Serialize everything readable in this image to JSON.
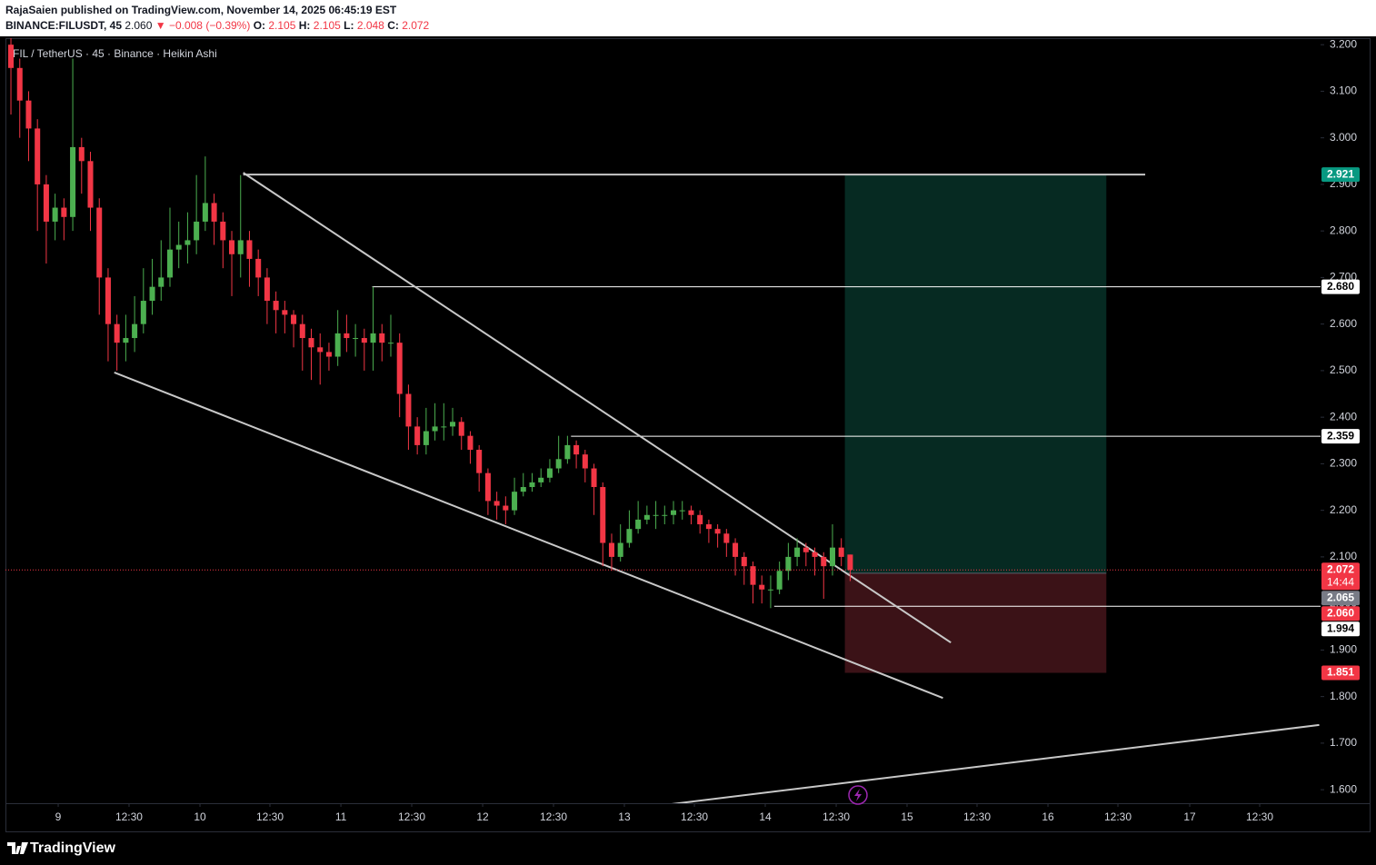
{
  "header": {
    "line1": "RajaSaien published on TradingView.com, November 14, 2025 06:45:19 EST",
    "symbol": "BINANCE:FILUSDT, 45",
    "last": "2.060",
    "change": "▼ −0.008 (−0.39%)",
    "ohlc": [
      [
        "O:",
        "2.105"
      ],
      [
        "H:",
        "2.105"
      ],
      [
        "L:",
        "2.048"
      ],
      [
        "C:",
        "2.072"
      ]
    ]
  },
  "chart_data": {
    "type": "candlestick",
    "legend": "FIL / TetherUS · 45 · Binance · Heikin Ashi",
    "up_color": "#4caf50",
    "down_color": "#f23645",
    "open": [
      3.2,
      3.15,
      3.08,
      3.02,
      2.9,
      2.82,
      2.85,
      2.83,
      2.98,
      2.95,
      2.85,
      2.7,
      2.6,
      2.56,
      2.57,
      2.6,
      2.65,
      2.68,
      2.7,
      2.76,
      2.77,
      2.78,
      2.82,
      2.86,
      2.82,
      2.78,
      2.75,
      2.78,
      2.74,
      2.7,
      2.65,
      2.63,
      2.62,
      2.6,
      2.57,
      2.55,
      2.54,
      2.53,
      2.58,
      2.57,
      2.57,
      2.56,
      2.58,
      2.56,
      2.56,
      2.45,
      2.38,
      2.34,
      2.37,
      2.38,
      2.38,
      2.39,
      2.36,
      2.33,
      2.28,
      2.22,
      2.21,
      2.2,
      2.24,
      2.25,
      2.26,
      2.27,
      2.29,
      2.31,
      2.34,
      2.32,
      2.29,
      2.25,
      2.13,
      2.1,
      2.13,
      2.16,
      2.18,
      2.19,
      2.19,
      2.19,
      2.2,
      2.2,
      2.19,
      2.17,
      2.16,
      2.15,
      2.13,
      2.1,
      2.08,
      2.04,
      2.03,
      2.03,
      2.07,
      2.1,
      2.12,
      2.11,
      2.1,
      2.08,
      2.12,
      2.105
    ],
    "high": [
      3.22,
      3.17,
      3.1,
      3.04,
      2.92,
      2.88,
      2.87,
      3.17,
      3.0,
      2.97,
      2.87,
      2.72,
      2.62,
      2.62,
      2.66,
      2.72,
      2.74,
      2.78,
      2.85,
      2.82,
      2.84,
      2.92,
      2.96,
      2.88,
      2.84,
      2.8,
      2.92,
      2.8,
      2.76,
      2.72,
      2.67,
      2.65,
      2.63,
      2.62,
      2.59,
      2.58,
      2.56,
      2.63,
      2.62,
      2.6,
      2.59,
      2.68,
      2.6,
      2.62,
      2.58,
      2.47,
      2.4,
      2.42,
      2.43,
      2.43,
      2.42,
      2.4,
      2.37,
      2.34,
      2.29,
      2.24,
      2.23,
      2.27,
      2.28,
      2.28,
      2.29,
      2.31,
      2.36,
      2.36,
      2.35,
      2.33,
      2.3,
      2.26,
      2.15,
      2.17,
      2.2,
      2.22,
      2.21,
      2.22,
      2.21,
      2.22,
      2.22,
      2.21,
      2.2,
      2.18,
      2.17,
      2.16,
      2.14,
      2.11,
      2.09,
      2.06,
      2.06,
      2.09,
      2.13,
      2.14,
      2.13,
      2.12,
      2.11,
      2.17,
      2.14,
      2.105
    ],
    "low": [
      3.05,
      3.0,
      2.95,
      2.8,
      2.73,
      2.78,
      2.78,
      2.8,
      2.88,
      2.8,
      2.62,
      2.52,
      2.5,
      2.52,
      2.54,
      2.58,
      2.62,
      2.65,
      2.68,
      2.72,
      2.73,
      2.75,
      2.8,
      2.77,
      2.72,
      2.66,
      2.7,
      2.68,
      2.66,
      2.6,
      2.58,
      2.58,
      2.55,
      2.5,
      2.48,
      2.47,
      2.5,
      2.51,
      2.54,
      2.53,
      2.5,
      2.5,
      2.52,
      2.53,
      2.4,
      2.33,
      2.32,
      2.32,
      2.35,
      2.35,
      2.36,
      2.33,
      2.3,
      2.24,
      2.19,
      2.18,
      2.17,
      2.19,
      2.23,
      2.24,
      2.25,
      2.26,
      2.28,
      2.3,
      2.29,
      2.26,
      2.19,
      2.08,
      2.07,
      2.09,
      2.12,
      2.15,
      2.17,
      2.16,
      2.17,
      2.17,
      2.18,
      2.17,
      2.15,
      2.13,
      2.12,
      2.1,
      2.06,
      2.04,
      2.0,
      2.0,
      1.99,
      2.02,
      2.05,
      2.08,
      2.08,
      2.06,
      2.01,
      2.06,
      2.08,
      2.048
    ],
    "close": [
      3.15,
      3.08,
      3.02,
      2.9,
      2.82,
      2.85,
      2.83,
      2.98,
      2.95,
      2.85,
      2.7,
      2.6,
      2.56,
      2.57,
      2.6,
      2.65,
      2.68,
      2.7,
      2.76,
      2.77,
      2.78,
      2.82,
      2.86,
      2.82,
      2.78,
      2.75,
      2.78,
      2.74,
      2.7,
      2.65,
      2.63,
      2.62,
      2.6,
      2.57,
      2.55,
      2.54,
      2.53,
      2.58,
      2.57,
      2.57,
      2.56,
      2.58,
      2.56,
      2.56,
      2.45,
      2.38,
      2.34,
      2.37,
      2.38,
      2.38,
      2.39,
      2.36,
      2.33,
      2.28,
      2.22,
      2.21,
      2.2,
      2.24,
      2.25,
      2.26,
      2.27,
      2.29,
      2.31,
      2.34,
      2.32,
      2.29,
      2.25,
      2.13,
      2.1,
      2.13,
      2.16,
      2.18,
      2.19,
      2.19,
      2.19,
      2.2,
      2.2,
      2.19,
      2.17,
      2.16,
      2.15,
      2.13,
      2.1,
      2.08,
      2.04,
      2.03,
      2.03,
      2.07,
      2.1,
      2.12,
      2.11,
      2.1,
      2.08,
      2.12,
      2.1,
      2.072
    ],
    "xlim": [
      -0.62,
      148.25
    ],
    "xticks": [
      {
        "value": 5.35,
        "label": "9"
      },
      {
        "value": 13.37,
        "label": "12:30"
      },
      {
        "value": 21.4,
        "label": "10"
      },
      {
        "value": 29.32,
        "label": "12:30"
      },
      {
        "value": 37.35,
        "label": "11"
      },
      {
        "value": 45.37,
        "label": "12:30"
      },
      {
        "value": 53.4,
        "label": "12"
      },
      {
        "value": 61.42,
        "label": "12:30"
      },
      {
        "value": 69.44,
        "label": "13"
      },
      {
        "value": 77.37,
        "label": "12:30"
      },
      {
        "value": 85.39,
        "label": "14"
      },
      {
        "value": 93.42,
        "label": "12:30"
      },
      {
        "value": 101.44,
        "label": "15"
      },
      {
        "value": 109.36,
        "label": "12:30"
      },
      {
        "value": 117.39,
        "label": "16"
      },
      {
        "value": 125.31,
        "label": "12:30"
      },
      {
        "value": 133.44,
        "label": "17"
      },
      {
        "value": 141.36,
        "label": "12:30"
      }
    ],
    "ylim": [
      1.571,
      3.214
    ],
    "yticks": [
      {
        "value": 1.6,
        "label": "1.600"
      },
      {
        "value": 1.7,
        "label": "1.700"
      },
      {
        "value": 1.8,
        "label": "1.800"
      },
      {
        "value": 1.9,
        "label": "1.900"
      },
      {
        "value": 2.0,
        "label": "2.000"
      },
      {
        "value": 2.1,
        "label": "2.100"
      },
      {
        "value": 2.2,
        "label": "2.200"
      },
      {
        "value": 2.3,
        "label": "2.300"
      },
      {
        "value": 2.4,
        "label": "2.400"
      },
      {
        "value": 2.5,
        "label": "2.500"
      },
      {
        "value": 2.6,
        "label": "2.600"
      },
      {
        "value": 2.7,
        "label": "2.700"
      },
      {
        "value": 2.8,
        "label": "2.800"
      },
      {
        "value": 2.9,
        "label": "2.900"
      },
      {
        "value": 3.0,
        "label": "3.000"
      },
      {
        "value": 3.1,
        "label": "3.100"
      },
      {
        "value": 3.2,
        "label": "3.200"
      }
    ],
    "grid": false,
    "levels": [
      {
        "value": 2.921,
        "from": 26.3,
        "to": 128.4,
        "color": "#c8c8c8"
      },
      {
        "value": 2.68,
        "from": 40.9,
        "to": 148.25,
        "color": "#ffffff"
      },
      {
        "value": 2.359,
        "from": 63.4,
        "to": 148.25,
        "color": "#ffffff"
      },
      {
        "value": 1.994,
        "from": 86.4,
        "to": 148.25,
        "color": "#ffffff"
      }
    ],
    "trendlines": [
      {
        "x": [
          26.3,
          106.4
        ],
        "y": [
          2.925,
          1.916
        ]
      },
      {
        "x": [
          11.7,
          105.5
        ],
        "y": [
          2.496,
          1.797
        ]
      },
      {
        "x": [
          73.9,
          148.1
        ],
        "y": [
          1.567,
          1.739
        ]
      }
    ],
    "position": {
      "x": [
        94.4,
        124.0
      ],
      "entry": 2.065,
      "target": 2.921,
      "stop": 1.851
    },
    "current_price": 2.072,
    "price_labels": [
      {
        "value": 2.921,
        "label": "2.921",
        "bg": "#089981",
        "fg": "#ffffff"
      },
      {
        "value": 2.68,
        "label": "2.680",
        "bg": "#ffffff",
        "fg": "#000000"
      },
      {
        "value": 2.359,
        "label": "2.359",
        "bg": "#ffffff",
        "fg": "#000000"
      },
      {
        "value": 2.072,
        "label": "2.072",
        "sub": "14:44",
        "bg": "#f23645",
        "fg": "#ffffff"
      },
      {
        "value": 2.065,
        "label": "2.065",
        "bg": "#787b86",
        "fg": "#ffffff"
      },
      {
        "value": 2.06,
        "label": "2.060",
        "bg": "#f23645",
        "fg": "#ffffff"
      },
      {
        "value": 1.994,
        "label": "1.994",
        "bg": "#ffffff",
        "fg": "#000000"
      },
      {
        "value": 1.851,
        "label": "1.851",
        "bg": "#f23645",
        "fg": "#ffffff"
      }
    ]
  },
  "footer": {
    "brand": "TradingView"
  }
}
